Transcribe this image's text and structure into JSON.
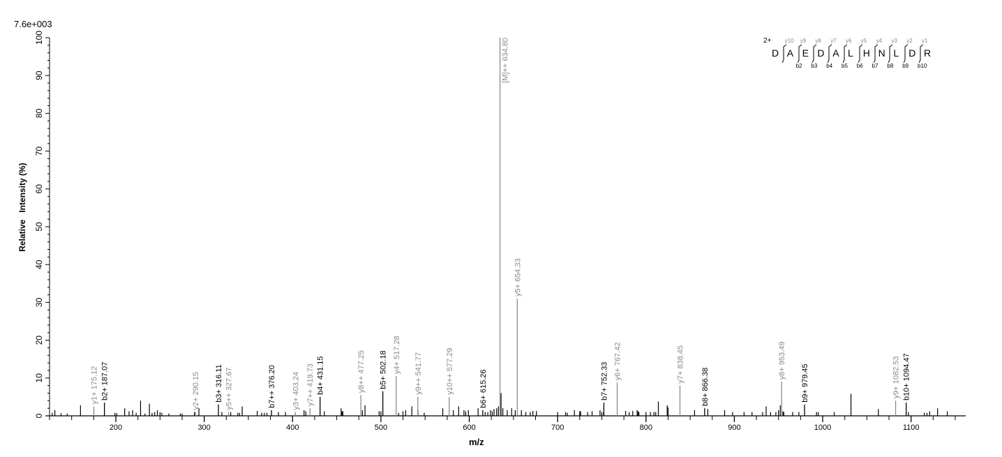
{
  "header": {
    "scale": "7.6e+003"
  },
  "axes": {
    "ylabel": "Relative   Intensity (%)",
    "xlabel": "m/z",
    "yticks": [
      0,
      10,
      20,
      30,
      40,
      50,
      60,
      70,
      80,
      90,
      100
    ],
    "xticks": [
      200,
      300,
      400,
      500,
      600,
      700,
      800,
      900,
      1000,
      1100
    ]
  },
  "sequence": {
    "charge": "2+",
    "residues": [
      "D",
      "A",
      "E",
      "D",
      "A",
      "L",
      "H",
      "N",
      "L",
      "D",
      "R"
    ],
    "y_labels": [
      "y10",
      "y9",
      "y8",
      "y7",
      "y6",
      "y5",
      "y4",
      "y3",
      "y2",
      "y1"
    ],
    "b_labels": [
      "b2",
      "b3",
      "b4",
      "b5",
      "b6",
      "b7",
      "b8",
      "b9",
      "b10"
    ]
  },
  "chart_data": {
    "type": "bar",
    "title": "",
    "scale_label": "7.6e+003",
    "xlabel": "m/z",
    "ylabel": "Relative   Intensity (%)",
    "xlim": [
      125,
      1162
    ],
    "ylim": [
      0,
      100
    ],
    "grid": false,
    "annotated_peaks": [
      {
        "label": "y1+ 175.12",
        "mz": 175.12,
        "intensity": 2.5,
        "type": "y"
      },
      {
        "label": "b2+ 187.07",
        "mz": 187.07,
        "intensity": 3.5,
        "type": "b"
      },
      {
        "label": "y2+ 290.15",
        "mz": 290.15,
        "intensity": 1.0,
        "type": "y"
      },
      {
        "label": "b3+ 316.11",
        "mz": 316.11,
        "intensity": 3.0,
        "type": "b"
      },
      {
        "label": "y5++ 327.67",
        "mz": 327.67,
        "intensity": 1.0,
        "type": "y"
      },
      {
        "label": "b7++ 376.20",
        "mz": 376.2,
        "intensity": 1.5,
        "type": "b"
      },
      {
        "label": "y3+ 403.24",
        "mz": 403.24,
        "intensity": 1.0,
        "type": "y"
      },
      {
        "label": "y7++ 419.73",
        "mz": 419.73,
        "intensity": 2.0,
        "type": "y"
      },
      {
        "label": "b4+ 431.15",
        "mz": 431.15,
        "intensity": 5.0,
        "type": "b"
      },
      {
        "label": "y8++ 477.25",
        "mz": 477.25,
        "intensity": 5.5,
        "type": "y"
      },
      {
        "label": "b5+ 502.18",
        "mz": 502.18,
        "intensity": 6.5,
        "type": "b"
      },
      {
        "label": "y4+ 517.28",
        "mz": 517.28,
        "intensity": 10.5,
        "type": "y"
      },
      {
        "label": "y9++ 541.77",
        "mz": 541.77,
        "intensity": 5.0,
        "type": "y"
      },
      {
        "label": "y10++ 577.29",
        "mz": 577.29,
        "intensity": 5.0,
        "type": "y"
      },
      {
        "label": "b6+ 615.26",
        "mz": 615.26,
        "intensity": 1.5,
        "type": "b"
      },
      {
        "label": "[M]++ 634.80",
        "mz": 634.8,
        "intensity": 100,
        "type": "y"
      },
      {
        "label": "y5+ 654.33",
        "mz": 654.33,
        "intensity": 31.0,
        "type": "y"
      },
      {
        "label": "b7+ 752.33",
        "mz": 752.33,
        "intensity": 3.5,
        "type": "b"
      },
      {
        "label": "y6+ 767.42",
        "mz": 767.42,
        "intensity": 8.8,
        "type": "y"
      },
      {
        "label": "y7+ 838.45",
        "mz": 838.45,
        "intensity": 8.0,
        "type": "y"
      },
      {
        "label": "b8+ 866.38",
        "mz": 866.38,
        "intensity": 2.0,
        "type": "b"
      },
      {
        "label": "y8+ 953.49",
        "mz": 953.49,
        "intensity": 9.0,
        "type": "y"
      },
      {
        "label": "b9+ 979.45",
        "mz": 979.45,
        "intensity": 3.0,
        "type": "b"
      },
      {
        "label": "y9+ 1082.53",
        "mz": 1082.53,
        "intensity": 4.0,
        "type": "y"
      },
      {
        "label": "b10+ 1094.47",
        "mz": 1094.47,
        "intensity": 3.5,
        "type": "b"
      }
    ],
    "unannotated_peaks": [
      [
        128,
        0.8
      ],
      [
        131,
        1.5
      ],
      [
        138,
        0.7
      ],
      [
        145,
        0.6
      ],
      [
        160,
        2.8
      ],
      [
        199,
        0.8
      ],
      [
        201,
        0.7
      ],
      [
        210,
        2.0
      ],
      [
        215,
        1.2
      ],
      [
        219,
        1.5
      ],
      [
        223,
        0.8
      ],
      [
        228,
        4.0
      ],
      [
        233,
        0.6
      ],
      [
        238,
        3.2
      ],
      [
        241,
        0.8
      ],
      [
        244,
        1.0
      ],
      [
        247,
        1.5
      ],
      [
        250,
        1.0
      ],
      [
        252,
        0.8
      ],
      [
        260,
        0.6
      ],
      [
        273,
        0.6
      ],
      [
        275,
        0.6
      ],
      [
        289,
        1.0
      ],
      [
        294,
        2.0
      ],
      [
        320,
        1.0
      ],
      [
        330,
        1.0
      ],
      [
        338,
        0.8
      ],
      [
        340,
        0.8
      ],
      [
        343,
        2.5
      ],
      [
        360,
        1.3
      ],
      [
        365,
        0.8
      ],
      [
        368,
        0.8
      ],
      [
        371,
        0.8
      ],
      [
        384,
        1.0
      ],
      [
        392,
        1.0
      ],
      [
        413,
        1.5
      ],
      [
        415,
        1.2
      ],
      [
        436,
        1.2
      ],
      [
        455,
        2.0
      ],
      [
        456,
        1.2
      ],
      [
        457,
        1.2
      ],
      [
        479,
        1.5
      ],
      [
        482,
        2.8
      ],
      [
        498,
        1.2
      ],
      [
        500,
        1.2
      ],
      [
        520,
        0.8
      ],
      [
        525,
        1.2
      ],
      [
        528,
        1.5
      ],
      [
        535,
        2.5
      ],
      [
        542,
        1.5
      ],
      [
        549,
        0.8
      ],
      [
        570,
        2.0
      ],
      [
        582,
        1.5
      ],
      [
        588,
        2.5
      ],
      [
        594,
        1.5
      ],
      [
        596,
        1.2
      ],
      [
        599,
        1.5
      ],
      [
        610,
        2.0
      ],
      [
        618,
        1.0
      ],
      [
        621,
        1.0
      ],
      [
        624,
        1.5
      ],
      [
        626,
        1.2
      ],
      [
        628,
        1.8
      ],
      [
        631,
        2.0
      ],
      [
        633,
        2.5
      ],
      [
        636,
        6.0
      ],
      [
        638,
        2.0
      ],
      [
        643,
        1.5
      ],
      [
        648,
        2.0
      ],
      [
        652,
        1.5
      ],
      [
        659,
        1.5
      ],
      [
        664,
        1.0
      ],
      [
        669,
        1.0
      ],
      [
        672,
        1.3
      ],
      [
        676,
        1.3
      ],
      [
        700,
        1.0
      ],
      [
        709,
        1.0
      ],
      [
        711,
        0.8
      ],
      [
        719,
        1.5
      ],
      [
        725,
        1.2
      ],
      [
        726,
        1.2
      ],
      [
        734,
        1.0
      ],
      [
        739,
        1.2
      ],
      [
        748,
        1.5
      ],
      [
        750,
        1.0
      ],
      [
        752,
        1.0
      ],
      [
        777,
        1.3
      ],
      [
        781,
        1.0
      ],
      [
        785,
        1.3
      ],
      [
        790,
        1.5
      ],
      [
        791,
        1.2
      ],
      [
        792,
        1.0
      ],
      [
        800,
        1.0
      ],
      [
        805,
        1.0
      ],
      [
        809,
        1.0
      ],
      [
        811,
        1.0
      ],
      [
        814,
        3.8
      ],
      [
        824,
        2.8
      ],
      [
        825,
        2.2
      ],
      [
        855,
        1.5
      ],
      [
        870,
        1.8
      ],
      [
        889,
        1.5
      ],
      [
        898,
        1.0
      ],
      [
        911,
        1.0
      ],
      [
        920,
        1.0
      ],
      [
        932,
        1.0
      ],
      [
        936,
        2.5
      ],
      [
        941,
        1.0
      ],
      [
        947,
        1.0
      ],
      [
        950,
        1.5
      ],
      [
        952,
        2.8
      ],
      [
        955,
        1.2
      ],
      [
        956,
        1.0
      ],
      [
        966,
        1.0
      ],
      [
        973,
        1.0
      ],
      [
        993,
        1.0
      ],
      [
        995,
        1.0
      ],
      [
        1013,
        1.0
      ],
      [
        1032,
        5.8
      ],
      [
        1063,
        1.8
      ],
      [
        1097,
        1.0
      ],
      [
        1115,
        0.8
      ],
      [
        1118,
        0.8
      ],
      [
        1121,
        1.2
      ],
      [
        1130,
        2.0
      ],
      [
        1141,
        1.2
      ]
    ]
  }
}
